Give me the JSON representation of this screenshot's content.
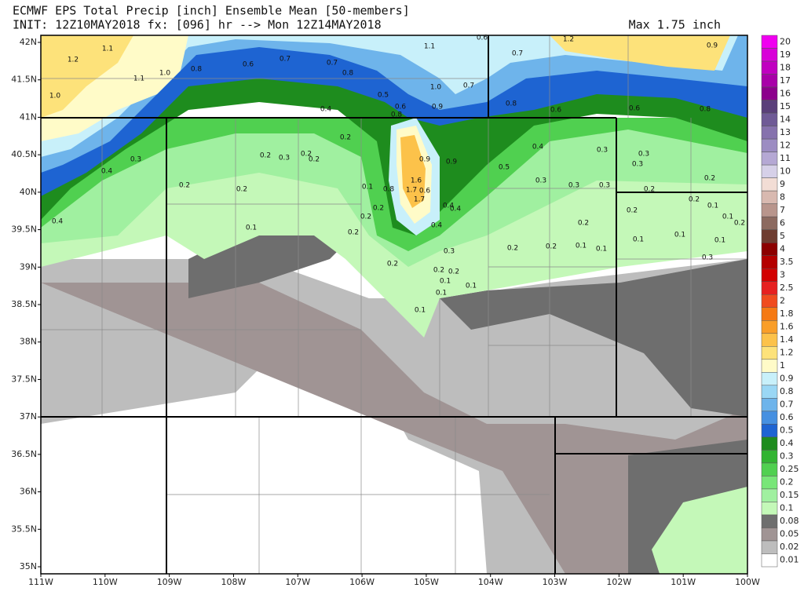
{
  "header": {
    "title": "ECMWF EPS Total Precip [inch] Ensemble Mean [50-members]",
    "init": "INIT: 12Z10MAY2018 fx: [096] hr --> Mon 12Z14MAY2018",
    "max": "Max 1.75 inch"
  },
  "lat_labels": [
    "42N",
    "41.5N",
    "41N",
    "40.5N",
    "40N",
    "39.5N",
    "39N",
    "38.5N",
    "38N",
    "37.5N",
    "37N",
    "36.5N",
    "36N",
    "35.5N",
    "35N"
  ],
  "lon_labels": [
    "111W",
    "110W",
    "109W",
    "108W",
    "107W",
    "106W",
    "105W",
    "104W",
    "103W",
    "102W",
    "101W",
    "100W"
  ],
  "legend": [
    {
      "label": "20",
      "color": "#f000f0"
    },
    {
      "label": "19",
      "color": "#d800d8"
    },
    {
      "label": "18",
      "color": "#c000c0"
    },
    {
      "label": "17",
      "color": "#a800a8"
    },
    {
      "label": "16",
      "color": "#8c008c"
    },
    {
      "label": "15",
      "color": "#5a3f7a"
    },
    {
      "label": "14",
      "color": "#6f5a96"
    },
    {
      "label": "13",
      "color": "#8672ad"
    },
    {
      "label": "12",
      "color": "#9c8cc2"
    },
    {
      "label": "11",
      "color": "#b5a8d4"
    },
    {
      "label": "10",
      "color": "#d6d0e8"
    },
    {
      "label": "9",
      "color": "#f2ddd5"
    },
    {
      "label": "8",
      "color": "#d8b9b0"
    },
    {
      "label": "7",
      "color": "#b8958c"
    },
    {
      "label": "6",
      "color": "#8c6a60"
    },
    {
      "label": "5",
      "color": "#6e3c30"
    },
    {
      "label": "4",
      "color": "#8c0000"
    },
    {
      "label": "3.5",
      "color": "#b40000"
    },
    {
      "label": "3",
      "color": "#d20000"
    },
    {
      "label": "2.5",
      "color": "#e62020"
    },
    {
      "label": "2",
      "color": "#f04b1e"
    },
    {
      "label": "1.8",
      "color": "#f57a14"
    },
    {
      "label": "1.6",
      "color": "#f99e28"
    },
    {
      "label": "1.4",
      "color": "#fcc24a"
    },
    {
      "label": "1.2",
      "color": "#fde27a"
    },
    {
      "label": "1",
      "color": "#fffbc8"
    },
    {
      "label": "0.9",
      "color": "#c8f0fa"
    },
    {
      "label": "0.8",
      "color": "#9ad7f5"
    },
    {
      "label": "0.7",
      "color": "#6eb4eb"
    },
    {
      "label": "0.6",
      "color": "#4690e1"
    },
    {
      "label": "0.5",
      "color": "#1e64d2"
    },
    {
      "label": "0.4",
      "color": "#1e8c1e"
    },
    {
      "label": "0.3",
      "color": "#32b432"
    },
    {
      "label": "0.25",
      "color": "#50d050"
    },
    {
      "label": "0.2",
      "color": "#78e678"
    },
    {
      "label": "0.15",
      "color": "#a0f0a0"
    },
    {
      "label": "0.1",
      "color": "#c4f8b8"
    },
    {
      "label": "0.08",
      "color": "#6e6e6e"
    },
    {
      "label": "0.05",
      "color": "#a09494"
    },
    {
      "label": "0.02",
      "color": "#bdbdbd"
    },
    {
      "label": "0.01",
      "color": "#ffffff"
    }
  ],
  "map_labels": [
    "1.2",
    "1.1",
    "1.1",
    "1.0",
    "0.8",
    "1.0",
    "0.6",
    "0.7",
    "0.7",
    "0.8",
    "0.5",
    "0.6",
    "0.8",
    "0.4",
    "1.1",
    "1.0",
    "0.7",
    "0.9",
    "0.6",
    "0.7",
    "1.2",
    "0.9",
    "0.8",
    "0.6",
    "0.6",
    "0.8",
    "0.3",
    "0.4",
    "0.4",
    "0.2",
    "0.2",
    "0.3",
    "0.2",
    "0.2",
    "0.2",
    "0.2",
    "0.1",
    "0.1",
    "0.8",
    "0.9",
    "0.9",
    "1.6",
    "1.7",
    "0.6",
    "1.7",
    "0.4",
    "0.4",
    "0.4",
    "0.2",
    "0.2",
    "0.2",
    "0.4",
    "0.5",
    "0.3",
    "0.3",
    "0.3",
    "0.3",
    "0.3",
    "0.3",
    "0.2",
    "0.2",
    "0.2",
    "0.1",
    "0.1",
    "0.2",
    "0.2",
    "0.2",
    "0.2",
    "0.2",
    "0.1",
    "0.1",
    "0.1",
    "0.1",
    "0.1",
    "0.3",
    "0.3",
    "0.2",
    "0.2",
    "0.1",
    "0.1",
    "0.1",
    "0.2",
    "0.1"
  ]
}
